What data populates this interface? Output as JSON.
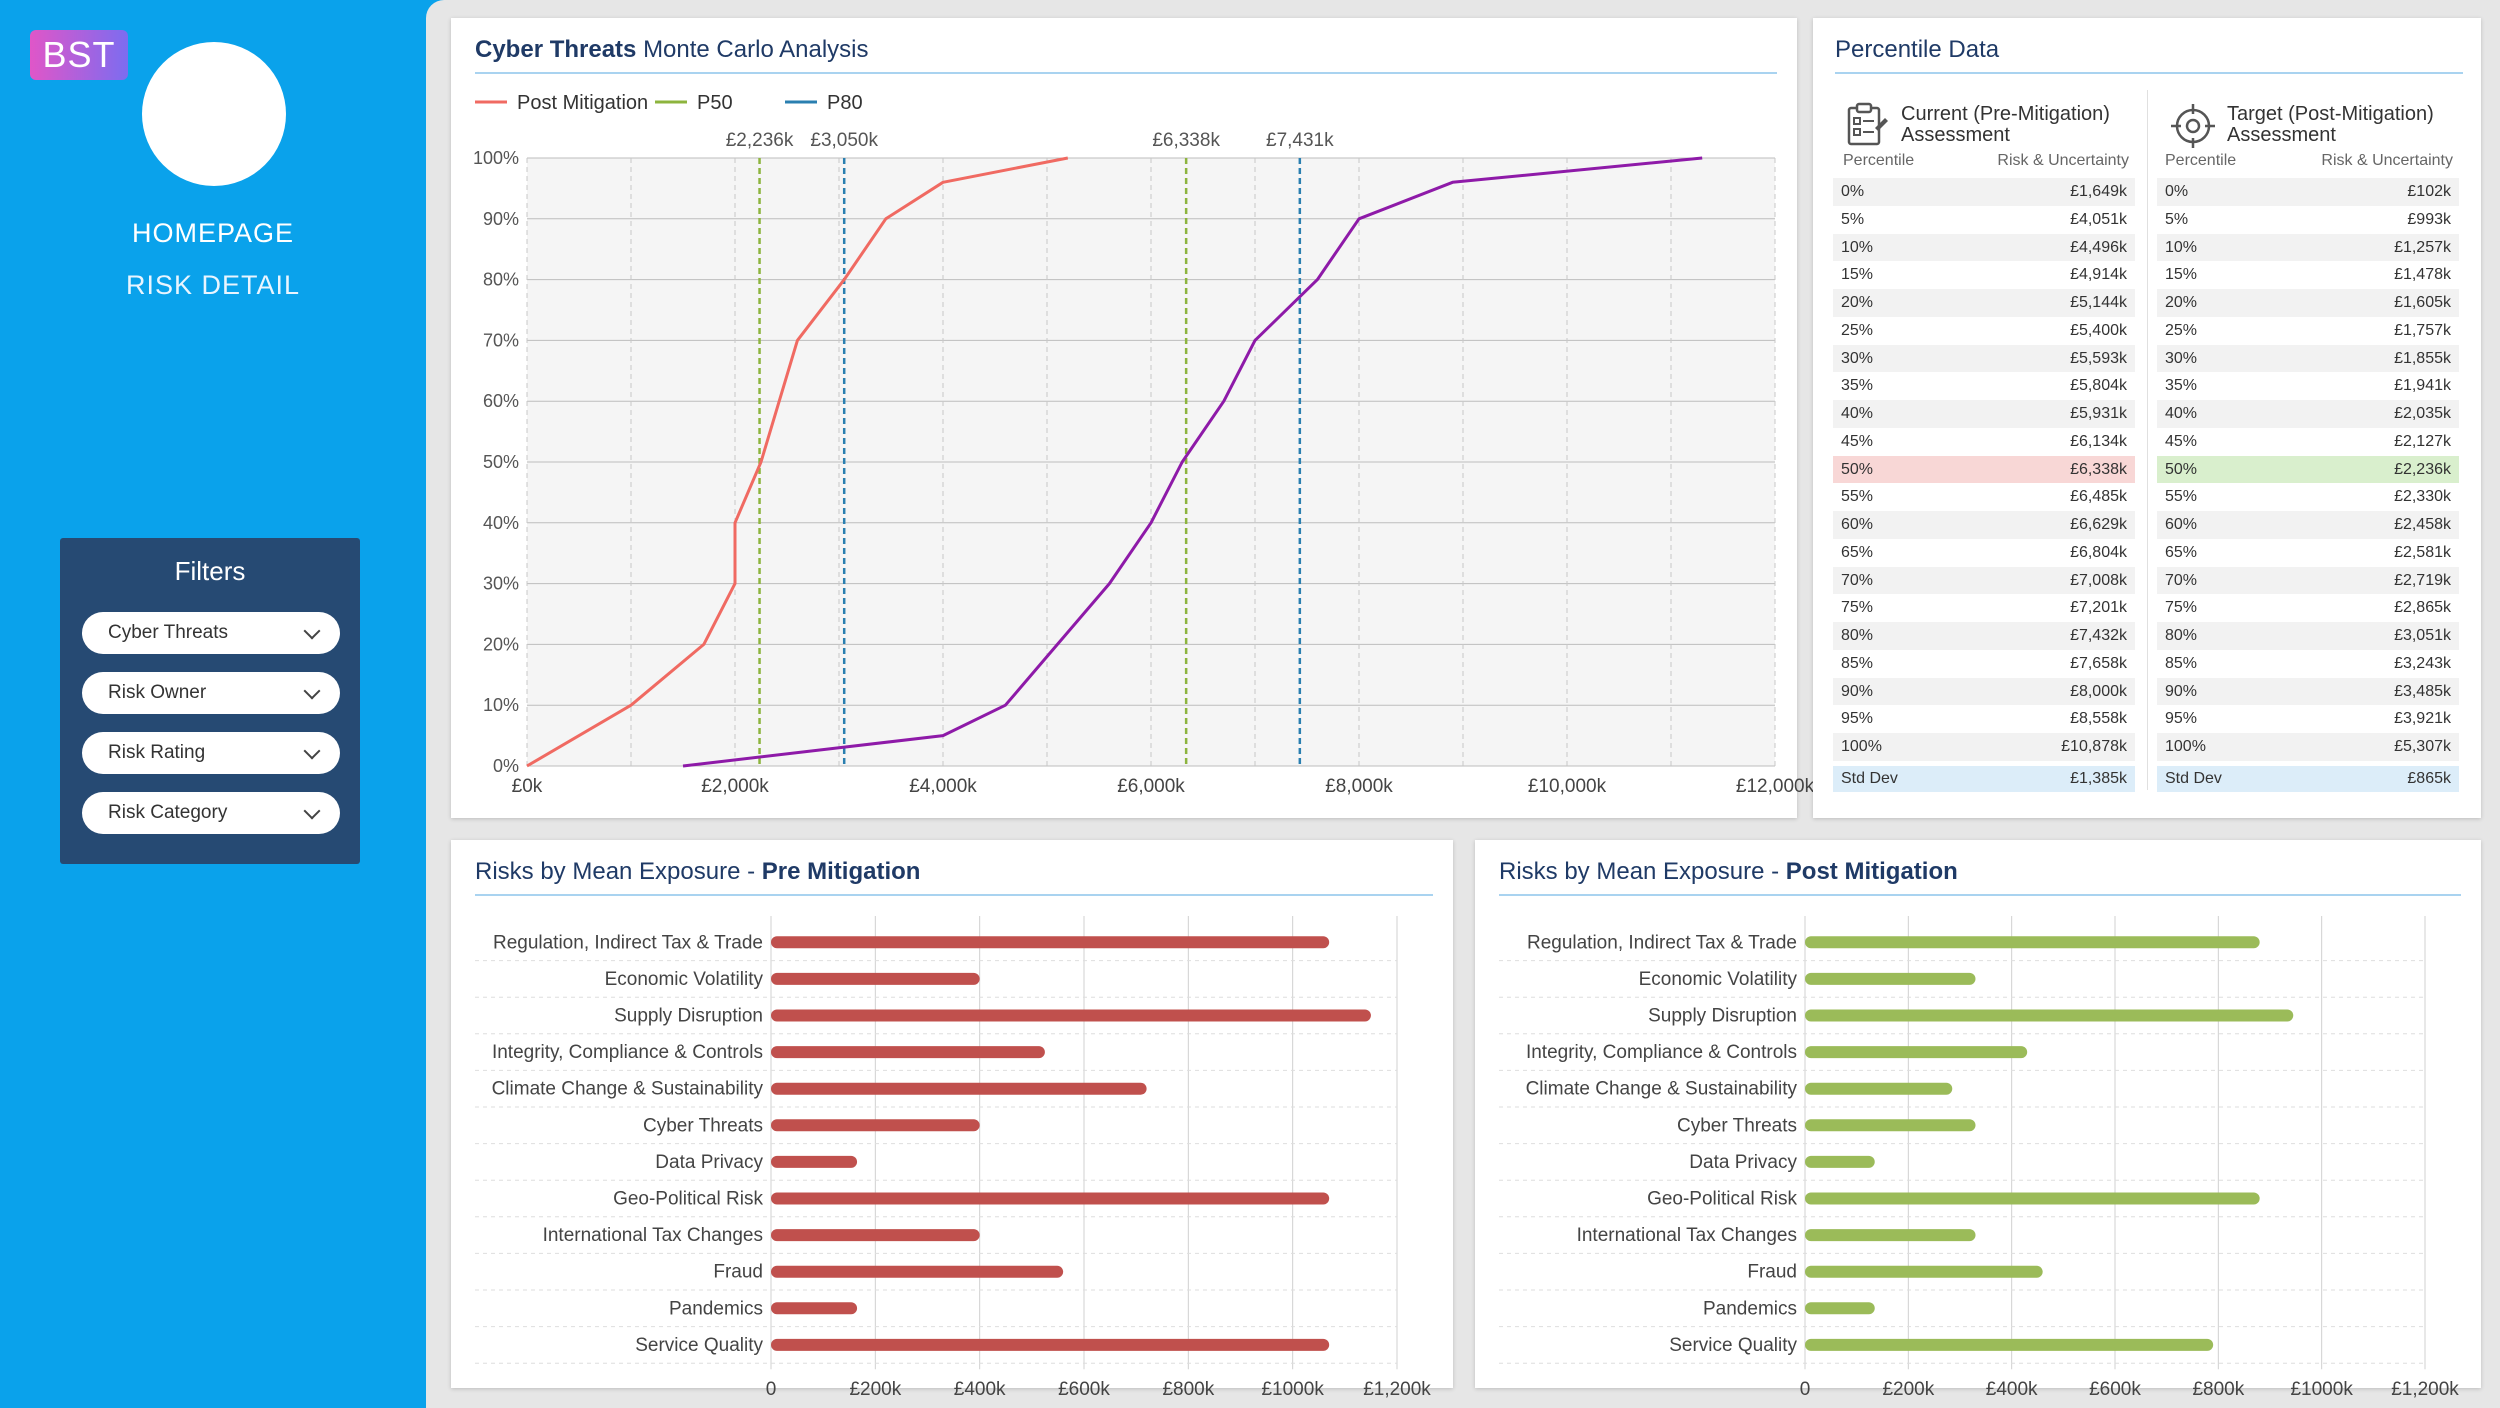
{
  "sidebar": {
    "logo": "BST",
    "nav": [
      "HOMEPAGE",
      "RISK DETAIL"
    ],
    "filters_title": "Filters",
    "filters": [
      "Cyber Threats",
      "Risk Owner",
      "Risk Rating",
      "Risk Category"
    ]
  },
  "monte_carlo": {
    "title_bold": "Cyber Threats",
    "title_rest": "Monte Carlo Analysis",
    "legend": [
      {
        "label": "Post Mitigation",
        "color": "#f06a62"
      },
      {
        "label": "P50",
        "color": "#8db43e"
      },
      {
        "label": "P80",
        "color": "#2a7fb0"
      }
    ],
    "markers": [
      {
        "label": "£2,236k",
        "value": 2236,
        "color": "#8db43e"
      },
      {
        "label": "£3,050k",
        "value": 3050,
        "color": "#2a7fb0"
      },
      {
        "label": "£6,338k",
        "value": 6338,
        "color": "#8db43e"
      },
      {
        "label": "£7,431k",
        "value": 7431,
        "color": "#2a7fb0"
      }
    ]
  },
  "chart_data": [
    {
      "type": "line",
      "title": "Cyber Threats Monte Carlo Analysis",
      "xlim": [
        0,
        12000
      ],
      "ylim": [
        0,
        100
      ],
      "x_ticks": [
        "£0k",
        "£2,000k",
        "£4,000k",
        "£6,000k",
        "£8,000k",
        "£10,000k",
        "£12,000k"
      ],
      "y_ticks": [
        "0%",
        "10%",
        "20%",
        "30%",
        "40%",
        "50%",
        "60%",
        "70%",
        "80%",
        "90%",
        "100%"
      ],
      "grid": true,
      "legend_position": "top-left",
      "series": [
        {
          "name": "Post Mitigation",
          "color": "#f06a62",
          "points": [
            [
              0,
              0
            ],
            [
              1000,
              10
            ],
            [
              1700,
              20
            ],
            [
              2000,
              30
            ],
            [
              2000,
              40
            ],
            [
              2250,
              50
            ],
            [
              2600,
              70
            ],
            [
              3050,
              80
            ],
            [
              3450,
              90
            ],
            [
              4000,
              96
            ],
            [
              5200,
              100
            ]
          ]
        },
        {
          "color": "#8e1aa8",
          "points": [
            [
              1500,
              0
            ],
            [
              3000,
              3
            ],
            [
              4000,
              5
            ],
            [
              4600,
              10
            ],
            [
              5100,
              20
            ],
            [
              5600,
              30
            ],
            [
              6000,
              40
            ],
            [
              6300,
              50
            ],
            [
              6700,
              60
            ],
            [
              7000,
              70
            ],
            [
              7600,
              80
            ],
            [
              8000,
              90
            ],
            [
              8900,
              96
            ],
            [
              11300,
              100
            ]
          ]
        }
      ]
    },
    {
      "type": "bar",
      "title": "Risks by Mean Exposure - Pre Mitigation",
      "categories": [
        "Regulation, Indirect Tax & Trade",
        "Economic Volatility",
        "Supply Disruption",
        "Integrity, Compliance & Controls",
        "Climate Change & Sustainability",
        "Cyber Threats",
        "Data Privacy",
        "Geo-Political Risk",
        "International Tax Changes",
        "Fraud",
        "Pandemics",
        "Service Quality"
      ],
      "values": [
        1070,
        400,
        1150,
        525,
        720,
        400,
        165,
        1070,
        400,
        560,
        165,
        1070
      ],
      "xlim": [
        0,
        1200
      ],
      "x_ticks": [
        "0",
        "£200k",
        "£400k",
        "£600k",
        "£800k",
        "£1000k",
        "£1,200k"
      ],
      "color": "#c0504d"
    },
    {
      "type": "bar",
      "title": "Risks by Mean Exposure - Post Mitigation",
      "categories": [
        "Regulation, Indirect Tax & Trade",
        "Economic Volatility",
        "Supply Disruption",
        "Integrity, Compliance & Controls",
        "Climate Change & Sustainability",
        "Cyber Threats",
        "Data Privacy",
        "Geo-Political Risk",
        "International Tax Changes",
        "Fraud",
        "Pandemics",
        "Service Quality"
      ],
      "values": [
        880,
        330,
        945,
        430,
        285,
        330,
        135,
        880,
        330,
        460,
        135,
        790
      ],
      "xlim": [
        0,
        1200
      ],
      "x_ticks": [
        "0",
        "£200k",
        "£400k",
        "£600k",
        "£800k",
        "£1000k",
        "£1,200k"
      ],
      "color": "#9bbb59"
    }
  ],
  "percentile": {
    "title": "Percentile Data",
    "current": {
      "heading": [
        "Current (Pre-Mitigation)",
        "Assessment"
      ],
      "col_p": "Percentile",
      "col_v": "Risk & Uncertainty",
      "highlight_color": "#f8d7d6",
      "rows": [
        [
          "0%",
          "£1,649k"
        ],
        [
          "5%",
          "£4,051k"
        ],
        [
          "10%",
          "£4,496k"
        ],
        [
          "15%",
          "£4,914k"
        ],
        [
          "20%",
          "£5,144k"
        ],
        [
          "25%",
          "£5,400k"
        ],
        [
          "30%",
          "£5,593k"
        ],
        [
          "35%",
          "£5,804k"
        ],
        [
          "40%",
          "£5,931k"
        ],
        [
          "45%",
          "£6,134k"
        ],
        [
          "50%",
          "£6,338k"
        ],
        [
          "55%",
          "£6,485k"
        ],
        [
          "60%",
          "£6,629k"
        ],
        [
          "65%",
          "£6,804k"
        ],
        [
          "70%",
          "£7,008k"
        ],
        [
          "75%",
          "£7,201k"
        ],
        [
          "80%",
          "£7,432k"
        ],
        [
          "85%",
          "£7,658k"
        ],
        [
          "90%",
          "£8,000k"
        ],
        [
          "95%",
          "£8,558k"
        ],
        [
          "100%",
          "£10,878k"
        ]
      ],
      "std_label": "Std Dev",
      "std_value": "£1,385k"
    },
    "target": {
      "heading": [
        "Target (Post-Mitigation)",
        "Assessment"
      ],
      "col_p": "Percentile",
      "col_v": "Risk & Uncertainty",
      "highlight_color": "#d9efcd",
      "rows": [
        [
          "0%",
          "£102k"
        ],
        [
          "5%",
          "£993k"
        ],
        [
          "10%",
          "£1,257k"
        ],
        [
          "15%",
          "£1,478k"
        ],
        [
          "20%",
          "£1,605k"
        ],
        [
          "25%",
          "£1,757k"
        ],
        [
          "30%",
          "£1,855k"
        ],
        [
          "35%",
          "£1,941k"
        ],
        [
          "40%",
          "£2,035k"
        ],
        [
          "45%",
          "£2,127k"
        ],
        [
          "50%",
          "£2,236k"
        ],
        [
          "55%",
          "£2,330k"
        ],
        [
          "60%",
          "£2,458k"
        ],
        [
          "65%",
          "£2,581k"
        ],
        [
          "70%",
          "£2,719k"
        ],
        [
          "75%",
          "£2,865k"
        ],
        [
          "80%",
          "£3,051k"
        ],
        [
          "85%",
          "£3,243k"
        ],
        [
          "90%",
          "£3,485k"
        ],
        [
          "95%",
          "£3,921k"
        ],
        [
          "100%",
          "£5,307k"
        ]
      ],
      "std_label": "Std Dev",
      "std_value": "£865k"
    }
  },
  "pre_bars": {
    "title_rest": "Risks by Mean Exposure - ",
    "title_bold": "Pre Mitigation"
  },
  "post_bars": {
    "title_rest": "Risks by Mean Exposure - ",
    "title_bold": "Post Mitigation"
  }
}
